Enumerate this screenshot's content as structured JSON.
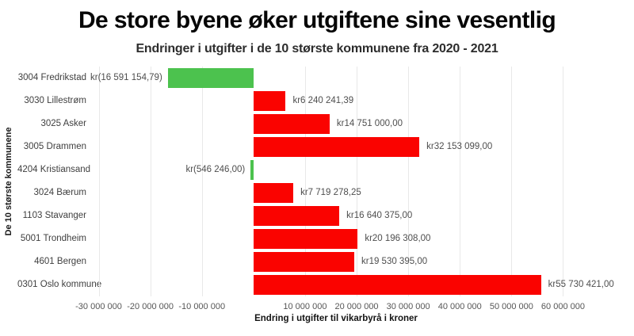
{
  "header": {
    "title": "De store byene øker utgiftene sine vesentlig",
    "subtitle": "Endringer i utgifter i de 10 største kommunene fra 2020 - 2021"
  },
  "chart_data": {
    "type": "bar",
    "orientation": "horizontal",
    "title": "De store byene øker utgiftene sine vesentlig",
    "subtitle": "Endringer i utgifter i de 10 største kommunene fra 2020 - 2021",
    "xlabel": "Endring i utgifter til vikarbyrå i kroner",
    "ylabel": "De 10 største kommunene",
    "categories": [
      "3004 Fredrikstad",
      "3030 Lillestrøm",
      "3025 Asker",
      "3005 Drammen",
      "4204 Kristiansand",
      "3024 Bærum",
      "1103 Stavanger",
      "5001 Trondheim",
      "4601 Bergen",
      "0301 Oslo kommune"
    ],
    "values": [
      -16591154.79,
      6240241.39,
      14751000.0,
      32153099.0,
      -546246.0,
      7719278.25,
      16640375.0,
      20196308.0,
      19530395.0,
      55730421.0
    ],
    "value_labels": [
      "kr(16 591 154,79)",
      "kr6 240 241,39",
      "kr14 751 000,00",
      "kr32 153 099,00",
      "kr(546 246,00)",
      "kr7 719 278,25",
      "kr16 640 375,00",
      "kr20 196 308,00",
      "kr19 530 395,00",
      "kr55 730 421,00"
    ],
    "x_ticks": [
      {
        "value": -30000000,
        "label": "-30 000 000"
      },
      {
        "value": -20000000,
        "label": "-20 000 000"
      },
      {
        "value": -10000000,
        "label": "-10 000 000"
      },
      {
        "value": 10000000,
        "label": "10 000 000"
      },
      {
        "value": 20000000,
        "label": "20 000 000"
      },
      {
        "value": 30000000,
        "label": "30 000 000"
      },
      {
        "value": 40000000,
        "label": "40 000 000"
      },
      {
        "value": 50000000,
        "label": "50 000 000"
      },
      {
        "value": 60000000,
        "label": "60 000 000"
      }
    ],
    "xlim": [
      -31000000,
      63000000
    ],
    "grid": "vertical-light",
    "legend": "none",
    "colors": {
      "positive_bar": "#fa0300",
      "negative_bar": "#4cc24e",
      "gridline": "#e8e8e8"
    }
  }
}
